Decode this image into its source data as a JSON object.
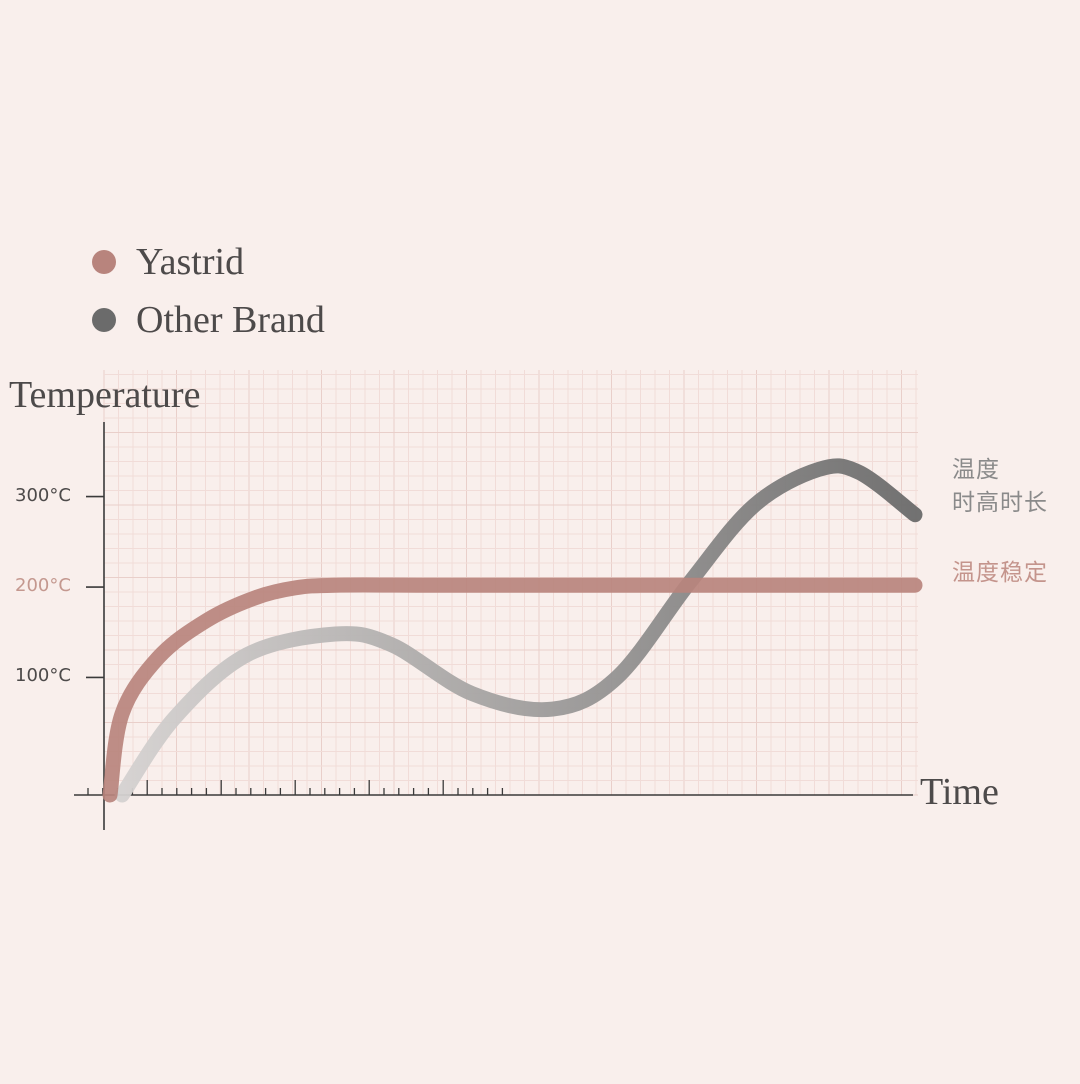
{
  "legend": [
    {
      "label": "Yastrid",
      "color": "#b8847d"
    },
    {
      "label": "Other Brand",
      "color": "#6b6b6b"
    }
  ],
  "annotations": {
    "other_line1": "温度",
    "other_line2": "时高时长",
    "yastrid": "温度稳定"
  },
  "colors": {
    "background": "#f9efec",
    "grid_minor": "#f1dcd8",
    "grid_major": "#e9cfca",
    "axis": "#3a3a3a",
    "text": "#4d4a4a",
    "highlight_tick": "#c4988f",
    "yastrid_annotation": "#c4948c",
    "other_annotation": "#8a8a8a"
  },
  "chart_data": {
    "type": "line",
    "xlabel": "Time",
    "ylabel": "Temperature",
    "yticks": [
      {
        "value": 100,
        "label": "100°C"
      },
      {
        "value": 200,
        "label": "200°C",
        "highlight": true
      },
      {
        "value": 300,
        "label": "300°C"
      }
    ],
    "ylim": [
      -30,
      440
    ],
    "xlim": [
      0,
      100
    ],
    "grid": true,
    "series": [
      {
        "name": "Yastrid",
        "color": "#b8847d",
        "points": [
          [
            0,
            -30
          ],
          [
            1.5,
            60
          ],
          [
            6,
            122
          ],
          [
            12,
            163
          ],
          [
            18,
            188
          ],
          [
            23,
            199
          ],
          [
            28,
            202
          ],
          [
            40,
            202
          ],
          [
            55,
            202
          ],
          [
            70,
            202
          ],
          [
            85,
            202
          ],
          [
            100,
            202
          ]
        ]
      },
      {
        "name": "Other Brand",
        "color_start": "#d6d3d2",
        "color_end": "#6b6b6b",
        "points": [
          [
            1.5,
            -30
          ],
          [
            8,
            55
          ],
          [
            17,
            125
          ],
          [
            28,
            148
          ],
          [
            35,
            136
          ],
          [
            45,
            82
          ],
          [
            55,
            65
          ],
          [
            63,
            100
          ],
          [
            72,
            205
          ],
          [
            80,
            290
          ],
          [
            88,
            330
          ],
          [
            93,
            327
          ],
          [
            100,
            280
          ]
        ]
      }
    ]
  }
}
